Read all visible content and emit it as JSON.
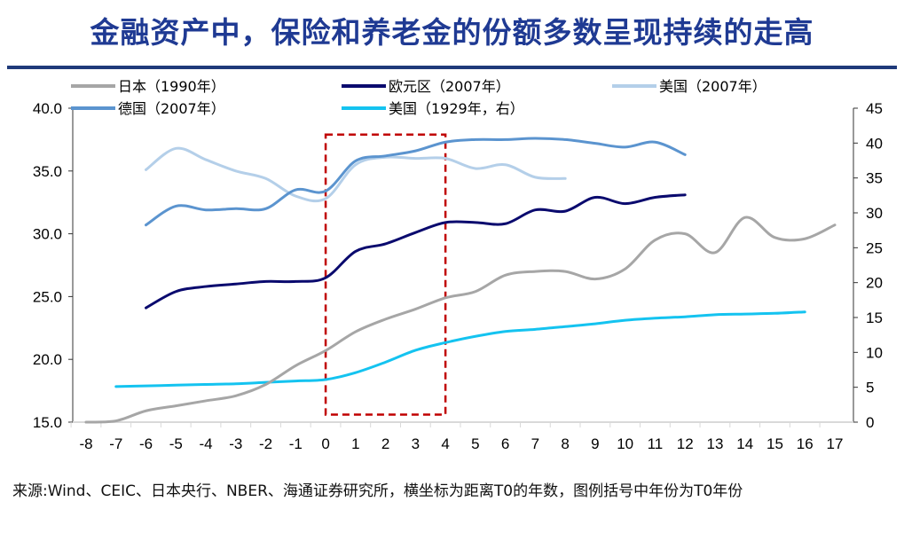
{
  "title": "金融资产中，保险和养老金的份额多数呈现持续的走高",
  "source": "来源:Wind、CEIC、日本央行、NBER、海通证券研究所，横坐标为距离T0的年数，图例括号中年份为T0年份",
  "chart_data": {
    "type": "line",
    "title": "金融资产中，保险和养老金的份额多数呈现持续的走高",
    "xlabel": "",
    "ylabel": "",
    "y2label": "",
    "xlim": [
      -8,
      17
    ],
    "ylim": [
      15,
      40
    ],
    "y2lim": [
      0,
      45
    ],
    "x_ticks": [
      "-8",
      "-7",
      "-6",
      "-5",
      "-4",
      "-3",
      "-2",
      "-1",
      "0",
      "1",
      "2",
      "3",
      "4",
      "5",
      "6",
      "7",
      "8",
      "9",
      "10",
      "11",
      "12",
      "13",
      "14",
      "15",
      "16",
      "17"
    ],
    "y_ticks": [
      "15.0",
      "20.0",
      "25.0",
      "30.0",
      "35.0",
      "40.0"
    ],
    "y2_ticks": [
      "0",
      "5",
      "10",
      "15",
      "20",
      "25",
      "30",
      "35",
      "40",
      "45"
    ],
    "highlight_box": {
      "x": [
        0,
        4
      ],
      "y": [
        15.6,
        37.9
      ],
      "color": "#c00000",
      "style": "dashed"
    },
    "legend_position": "top",
    "series": [
      {
        "name": "日本（1990年）",
        "color": "#a6a6a6",
        "axis": "left",
        "x": [
          -8,
          -7,
          -6,
          -5,
          -4,
          -3,
          -2,
          -1,
          0,
          1,
          2,
          3,
          4,
          5,
          6,
          7,
          8,
          9,
          10,
          11,
          12,
          13,
          14,
          15,
          16,
          17
        ],
        "values": [
          15.0,
          15.1,
          15.9,
          16.3,
          16.7,
          17.1,
          18.0,
          19.5,
          20.7,
          22.2,
          23.2,
          24.0,
          24.9,
          25.4,
          26.7,
          27.0,
          27.0,
          26.4,
          27.2,
          29.5,
          30.0,
          28.5,
          31.3,
          29.7,
          29.6,
          30.7
        ]
      },
      {
        "name": "欧元区（2007年）",
        "color": "#0a0a6e",
        "axis": "left",
        "x": [
          -6,
          -5,
          -4,
          -3,
          -2,
          -1,
          0,
          1,
          2,
          3,
          4,
          5,
          6,
          7,
          8,
          9,
          10,
          11,
          12
        ],
        "values": [
          24.1,
          25.4,
          25.8,
          26.0,
          26.2,
          26.2,
          26.5,
          28.6,
          29.2,
          30.1,
          30.9,
          30.9,
          30.8,
          31.9,
          31.8,
          32.9,
          32.4,
          32.9,
          33.1
        ]
      },
      {
        "name": "美国（2007年）",
        "color": "#b4cfe9",
        "axis": "left",
        "x": [
          -6,
          -5,
          -4,
          -3,
          -2,
          -1,
          0,
          1,
          2,
          3,
          4,
          5,
          6,
          7,
          8
        ],
        "values": [
          35.1,
          36.8,
          35.9,
          35.0,
          34.4,
          33.0,
          32.8,
          35.5,
          36.1,
          36.0,
          36.0,
          35.2,
          35.5,
          34.5,
          34.4
        ]
      },
      {
        "name": "德国（2007年）",
        "color": "#5b94cf",
        "axis": "left",
        "x": [
          -6,
          -5,
          -4,
          -3,
          -2,
          -1,
          0,
          1,
          2,
          3,
          4,
          5,
          6,
          7,
          8,
          9,
          10,
          11,
          12
        ],
        "values": [
          30.7,
          32.2,
          31.9,
          32.0,
          32.0,
          33.5,
          33.4,
          35.8,
          36.2,
          36.6,
          37.3,
          37.5,
          37.5,
          37.6,
          37.5,
          37.2,
          36.9,
          37.3,
          36.3
        ]
      },
      {
        "name": "美国（1929年，右）",
        "color": "#14c3f0",
        "axis": "right",
        "x": [
          -7,
          -6,
          -5,
          -4,
          -3,
          -2,
          -1,
          0,
          1,
          2,
          3,
          4,
          5,
          6,
          7,
          8,
          9,
          10,
          11,
          12,
          13,
          14,
          15,
          16
        ],
        "values": [
          5.1,
          5.2,
          5.3,
          5.4,
          5.5,
          5.7,
          5.9,
          6.1,
          7.1,
          8.6,
          10.3,
          11.4,
          12.3,
          13.0,
          13.3,
          13.7,
          14.1,
          14.6,
          14.9,
          15.1,
          15.4,
          15.5,
          15.6,
          15.8
        ]
      }
    ]
  }
}
